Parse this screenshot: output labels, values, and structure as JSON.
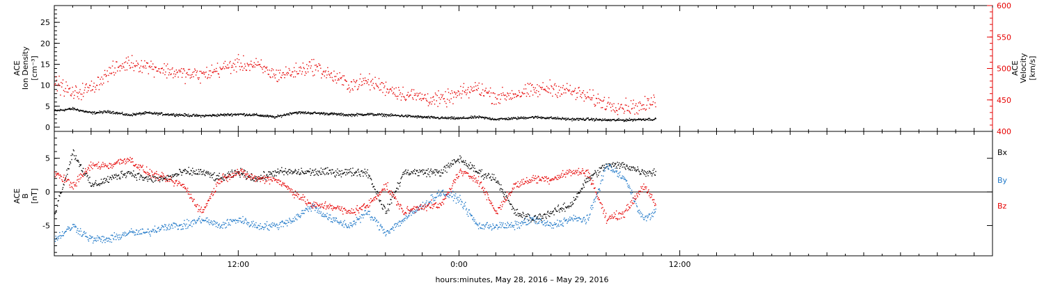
{
  "footer": {
    "xlabel": "hours:minutes, May 28, 2016 – May 29, 2016"
  },
  "chart_data": [
    {
      "type": "scatter",
      "panel": "top",
      "left_axis": {
        "label_lines": [
          "ACE",
          "Ion Density",
          "[cm⁻³]"
        ],
        "ticks": [
          0,
          5,
          10,
          15,
          20,
          25
        ],
        "ylim": [
          -1,
          29
        ]
      },
      "right_axis": {
        "label_lines": [
          "ACE",
          "Velocity",
          "[km/s]"
        ],
        "ticks": [
          400,
          450,
          500,
          550,
          600
        ],
        "ylim": [
          400,
          600
        ]
      },
      "x_ticks": [
        "12:00",
        "0:00",
        "12:00"
      ],
      "x_tick_hours": [
        12,
        24,
        36
      ],
      "xlim_hours": [
        2,
        53
      ],
      "data_end_hour": 34.7,
      "colors": {
        "density": "#000000",
        "velocity": "#e60000"
      },
      "series": [
        {
          "axis": "left",
          "color": "#000000",
          "x_hours": [
            2,
            3,
            4,
            5,
            6,
            7,
            8,
            9,
            10,
            11,
            12,
            13,
            14,
            15,
            16,
            17,
            18,
            19,
            20,
            21,
            22,
            23,
            24,
            25,
            26,
            27,
            28,
            29,
            30,
            31,
            32,
            33,
            34,
            34.7
          ],
          "y": [
            4,
            4.5,
            3.5,
            3.8,
            3,
            3.5,
            3.2,
            3,
            2.8,
            3,
            3.2,
            3,
            2.5,
            3.6,
            3.5,
            3.3,
            3,
            3.2,
            3,
            2.8,
            2.5,
            2.3,
            2.2,
            2.5,
            2,
            2.2,
            2.5,
            2.3,
            2,
            2,
            1.8,
            1.8,
            2,
            2
          ]
        },
        {
          "axis": "right",
          "color": "#e60000",
          "x_hours": [
            2,
            3,
            4,
            5,
            6,
            7,
            8,
            9,
            10,
            11,
            12,
            13,
            14,
            15,
            16,
            17,
            18,
            19,
            20,
            21,
            22,
            23,
            24,
            25,
            26,
            27,
            28,
            29,
            30,
            31,
            32,
            33,
            34,
            34.7
          ],
          "y": [
            480,
            460,
            470,
            495,
            510,
            505,
            498,
            492,
            490,
            500,
            508,
            505,
            490,
            495,
            505,
            490,
            475,
            480,
            470,
            460,
            455,
            450,
            460,
            470,
            455,
            460,
            465,
            470,
            465,
            455,
            445,
            440,
            440,
            450
          ]
        }
      ]
    },
    {
      "type": "scatter",
      "panel": "bottom",
      "left_axis": {
        "label_lines": [
          "ACE",
          "B",
          "[nT]"
        ],
        "ticks": [
          -5,
          0,
          5
        ],
        "ylim": [
          -9.5,
          9
        ]
      },
      "x_ticks": [
        "12:00",
        "0:00",
        "12:00"
      ],
      "x_tick_hours": [
        12,
        24,
        36
      ],
      "xlim_hours": [
        2,
        53
      ],
      "data_end_hour": 34.7,
      "zero_line": true,
      "legend": [
        "Bx",
        "By",
        "Bz"
      ],
      "legend_position": "right",
      "series": [
        {
          "name": "Bx",
          "color": "#000000",
          "x_hours": [
            2,
            3,
            4,
            5,
            6,
            7,
            8,
            9,
            10,
            11,
            12,
            13,
            14,
            15,
            16,
            17,
            18,
            19,
            20,
            21,
            22,
            23,
            24,
            25,
            26,
            27,
            28,
            29,
            30,
            31,
            32,
            33,
            34,
            34.7
          ],
          "y": [
            -3,
            6,
            1,
            2,
            3,
            2,
            2,
            3,
            3,
            2,
            3,
            2,
            3,
            3,
            3,
            3,
            3,
            3,
            -3,
            3,
            3,
            3,
            5,
            3,
            2,
            -3,
            -4,
            -3,
            -2,
            2,
            4,
            4,
            3,
            3
          ]
        },
        {
          "name": "By",
          "color": "#1f78c8",
          "x_hours": [
            2,
            3,
            4,
            5,
            6,
            7,
            8,
            9,
            10,
            11,
            12,
            13,
            14,
            15,
            16,
            17,
            18,
            19,
            20,
            21,
            22,
            23,
            24,
            25,
            26,
            27,
            28,
            29,
            30,
            31,
            32,
            33,
            34,
            34.7
          ],
          "y": [
            -7,
            -5,
            -7,
            -7,
            -6,
            -6,
            -5,
            -5,
            -4,
            -5,
            -4,
            -5,
            -5,
            -4,
            -2,
            -4,
            -5,
            -3,
            -6,
            -4,
            -2,
            0,
            -1,
            -5,
            -5,
            -5,
            -4,
            -5,
            -4,
            -4,
            4,
            2,
            -4,
            -3
          ]
        },
        {
          "name": "Bz",
          "color": "#e60000",
          "x_hours": [
            2,
            3,
            4,
            5,
            6,
            7,
            8,
            9,
            10,
            11,
            12,
            13,
            14,
            15,
            16,
            17,
            18,
            19,
            20,
            21,
            22,
            23,
            24,
            25,
            26,
            27,
            28,
            29,
            30,
            31,
            32,
            33,
            34,
            34.7
          ],
          "y": [
            3,
            1,
            4,
            4,
            5,
            3,
            2,
            1,
            -3,
            2,
            3,
            2,
            2,
            0,
            -2,
            -2,
            -3,
            -2,
            1,
            -3,
            -2,
            -2,
            3,
            2,
            -3,
            1,
            2,
            2,
            3,
            3,
            -4,
            -3,
            1,
            -2
          ]
        }
      ]
    }
  ]
}
